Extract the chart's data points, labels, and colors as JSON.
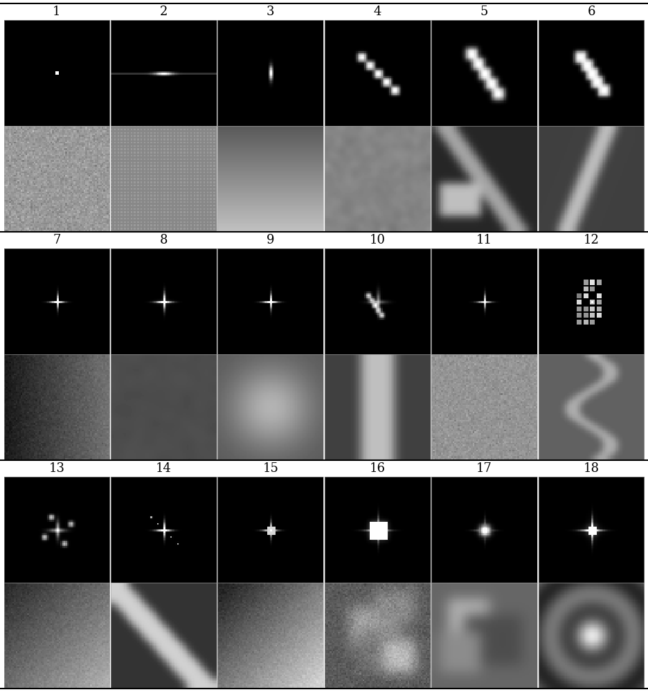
{
  "n_groups": 3,
  "n_cols": 6,
  "group_labels": [
    [
      "1",
      "2",
      "3",
      "4",
      "5",
      "6"
    ],
    [
      "7",
      "8",
      "9",
      "10",
      "11",
      "12"
    ],
    [
      "13",
      "14",
      "15",
      "16",
      "17",
      "18"
    ]
  ],
  "background_color": "#ffffff",
  "label_fontsize": 13,
  "separator_linewidth": 1.5
}
